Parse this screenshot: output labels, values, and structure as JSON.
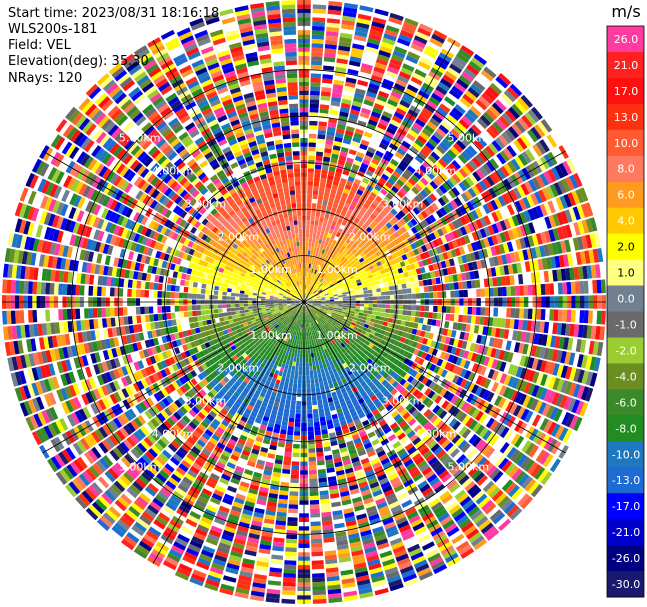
{
  "header": {
    "start_time": "Start time: 2023/08/31 18:16:18",
    "instrument": "WLS200s-181",
    "field": "Field: VEL",
    "elevation": "Elevation(deg): 35.30",
    "nrays": "NRays: 120"
  },
  "chart_data": {
    "type": "heatmap",
    "projection": "PPI (polar)",
    "field": "VEL",
    "units": "m/s",
    "n_rays": 120,
    "range_rings_km": [
      1.0,
      2.0,
      3.0,
      4.0,
      5.0
    ],
    "ring_labels": [
      "1.00km",
      "2.00km",
      "3.00km",
      "4.00km",
      "5.00km"
    ],
    "max_range_km": 6.5,
    "spokes_deg": [
      0,
      30,
      60,
      90,
      120,
      150,
      180,
      210,
      240,
      270,
      300,
      330
    ],
    "colorbar": {
      "title": "m/s",
      "ticks": [
        "26.0",
        "21.0",
        "17.0",
        "13.0",
        "10.0",
        "8.0",
        "6.0",
        "4.0",
        "2.0",
        "1.0",
        "0.0",
        "-1.0",
        "-2.0",
        "-4.0",
        "-6.0",
        "-8.0",
        "-10.0",
        "-13.0",
        "-17.0",
        "-21.0",
        "-26.0",
        "-30.0"
      ],
      "colors": [
        "#ff3aa0",
        "#ff2020",
        "#ff1010",
        "#ff3010",
        "#ff5a32",
        "#ff7860",
        "#ff9a20",
        "#ffc800",
        "#ffff00",
        "#ffff80",
        "#708090",
        "#6a6a6a",
        "#9acd32",
        "#6b8e23",
        "#3a8a2a",
        "#228b22",
        "#1e78c0",
        "#1e6bd2",
        "#0000ff",
        "#0000cd",
        "#000080",
        "#191970"
      ]
    },
    "near_field_pattern": {
      "north_sector": "positive (yellow/orange)",
      "south_sector": "negative (green/blue)",
      "east_west": "near zero (grey)"
    },
    "far_field": "noise (random colors)"
  }
}
